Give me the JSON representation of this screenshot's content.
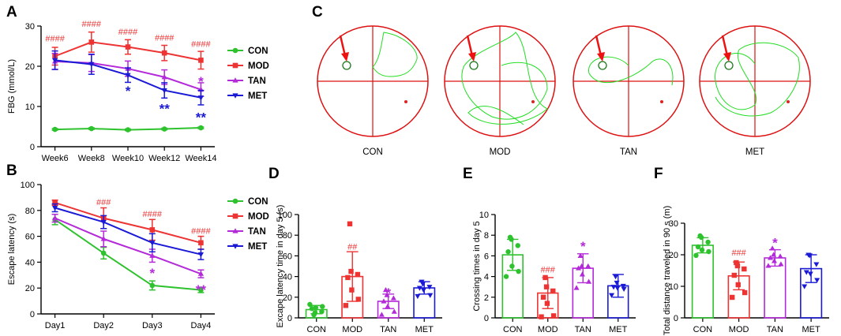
{
  "colors": {
    "CON": "#2ec22e",
    "MOD": "#ee3333",
    "TAN": "#b429d9",
    "MET": "#1a1ad6",
    "sig": "#ee3333",
    "axis": "#000000",
    "track": "#22dd22",
    "grid": "#dd1111",
    "arrow": "#ee1111"
  },
  "chart_data": [
    {
      "id": "A",
      "panel_label": "A",
      "type": "line",
      "ylabel": "FBG (mmol/L)",
      "categories": [
        "Week6",
        "Week8",
        "Week10",
        "Week12",
        "Week14"
      ],
      "ylim": [
        0,
        30
      ],
      "yticks": [
        0,
        10,
        20,
        30
      ],
      "legend": [
        "CON",
        "MOD",
        "TAN",
        "MET"
      ],
      "series": [
        {
          "name": "CON",
          "values": [
            4.3,
            4.5,
            4.2,
            4.4,
            4.7
          ],
          "err": [
            0.2,
            0.2,
            0.2,
            0.2,
            0.2
          ]
        },
        {
          "name": "MOD",
          "values": [
            22.5,
            26,
            24.8,
            23.3,
            21.5
          ],
          "err": [
            2.2,
            2.5,
            1.8,
            1.9,
            2.2
          ]
        },
        {
          "name": "TAN",
          "values": [
            21.2,
            20.8,
            19.4,
            17.3,
            14.2
          ],
          "err": [
            2,
            2.1,
            1.9,
            1.8,
            1.7
          ]
        },
        {
          "name": "MET",
          "values": [
            21.5,
            20.5,
            17.8,
            14,
            12.2
          ],
          "err": [
            2.3,
            2.5,
            1.8,
            1.9,
            1.8
          ]
        }
      ],
      "annotations": [
        {
          "text": "####",
          "cat": 0,
          "y": 26.2,
          "color": "sig"
        },
        {
          "text": "####",
          "cat": 1,
          "y": 29.8,
          "color": "sig"
        },
        {
          "text": "####",
          "cat": 2,
          "y": 27.8,
          "color": "sig"
        },
        {
          "text": "####",
          "cat": 3,
          "y": 26.4,
          "color": "sig"
        },
        {
          "text": "####",
          "cat": 4,
          "y": 24.8,
          "color": "sig"
        },
        {
          "text": "*",
          "cat": 2,
          "y": 14.3,
          "color": "MET"
        },
        {
          "text": "**",
          "cat": 3,
          "y": 9.9,
          "color": "MET"
        },
        {
          "text": "**",
          "cat": 4,
          "y": 7.7,
          "color": "MET"
        },
        {
          "text": "*",
          "cat": 4,
          "y": 16.7,
          "color": "TAN"
        }
      ]
    },
    {
      "id": "B",
      "panel_label": "B",
      "type": "line",
      "ylabel": "Escape latency (s)",
      "categories": [
        "Day1",
        "Day2",
        "Day3",
        "Day4"
      ],
      "ylim": [
        0,
        100
      ],
      "yticks": [
        0,
        20,
        40,
        60,
        80,
        100
      ],
      "legend": [
        "CON",
        "MOD",
        "TAN",
        "MET"
      ],
      "series": [
        {
          "name": "CON",
          "values": [
            73,
            47,
            22,
            18.5
          ],
          "err": [
            4,
            4.5,
            3.5,
            2
          ]
        },
        {
          "name": "MOD",
          "values": [
            86,
            74,
            65,
            55
          ],
          "err": [
            2,
            8,
            8,
            5
          ]
        },
        {
          "name": "TAN",
          "values": [
            74,
            58,
            45,
            31
          ],
          "err": [
            3,
            6,
            5,
            3
          ]
        },
        {
          "name": "MET",
          "values": [
            82,
            71,
            55,
            46
          ],
          "err": [
            3,
            5,
            7,
            4
          ]
        }
      ],
      "annotations": [
        {
          "text": "###",
          "cat": 1,
          "y": 84,
          "color": "sig"
        },
        {
          "text": "####",
          "cat": 2,
          "y": 75,
          "color": "sig"
        },
        {
          "text": "####",
          "cat": 3,
          "y": 62,
          "color": "sig"
        },
        {
          "text": "*",
          "cat": 2,
          "y": 33,
          "color": "TAN"
        },
        {
          "text": "**",
          "cat": 3,
          "y": 20,
          "color": "TAN"
        }
      ]
    },
    {
      "id": "D",
      "panel_label": "D",
      "type": "bar",
      "ylabel": "Excape latency time in day 5 (s)",
      "categories": [
        "CON",
        "MOD",
        "TAN",
        "MET"
      ],
      "ylim": [
        0,
        100
      ],
      "yticks": [
        0,
        20,
        40,
        60,
        80,
        100
      ],
      "values": [
        8,
        40,
        16,
        29
      ],
      "err": [
        4,
        24,
        7,
        6
      ],
      "points": [
        [
          3,
          5,
          6,
          9,
          10,
          11,
          13
        ],
        [
          91,
          45,
          42,
          39,
          27,
          18,
          12
        ],
        [
          27,
          22,
          19,
          16,
          11,
          6,
          3
        ],
        [
          35,
          33,
          30,
          29,
          27,
          22,
          21
        ]
      ],
      "markers": [
        "circle",
        "square",
        "triangle",
        "triangle-down"
      ],
      "annotations": [
        {
          "text": "##",
          "cat": 1,
          "y": 66,
          "color": "sig"
        },
        {
          "text": "*",
          "cat": 2,
          "y": 26,
          "color": "TAN"
        }
      ]
    },
    {
      "id": "E",
      "panel_label": "E",
      "type": "bar",
      "ylabel": "Crossing times in day 5",
      "categories": [
        "CON",
        "MOD",
        "TAN",
        "MET"
      ],
      "ylim": [
        0,
        10
      ],
      "yticks": [
        0,
        2,
        4,
        6,
        8,
        10
      ],
      "values": [
        6.1,
        2.4,
        4.8,
        3.1
      ],
      "err": [
        1.5,
        1.5,
        1.4,
        1.1
      ],
      "points": [
        [
          7.8,
          7.6,
          7,
          6.4,
          5,
          4.5,
          4
        ],
        [
          3.9,
          3,
          2.6,
          2,
          1.4,
          0.2,
          0.1
        ],
        [
          6,
          5,
          5,
          4.8,
          4.2,
          3.5,
          2.9
        ],
        [
          4,
          3.4,
          3.1,
          3,
          2.9,
          2.8,
          2.2
        ]
      ],
      "markers": [
        "circle",
        "square",
        "triangle",
        "triangle-down"
      ],
      "annotations": [
        {
          "text": "###",
          "cat": 1,
          "y": 4.4,
          "color": "sig"
        },
        {
          "text": "*",
          "cat": 2,
          "y": 7.1,
          "color": "TAN"
        }
      ]
    },
    {
      "id": "F",
      "panel_label": "F",
      "type": "bar",
      "ylabel": "Total distance traveled in 90 s (m)",
      "categories": [
        "CON",
        "MOD",
        "TAN",
        "MET"
      ],
      "ylim": [
        0,
        30
      ],
      "yticks": [
        0,
        10,
        20,
        30
      ],
      "values": [
        23,
        13.3,
        19,
        15.6
      ],
      "err": [
        2.4,
        4.4,
        2.6,
        4.4
      ],
      "points": [
        [
          26,
          25.5,
          24,
          22.5,
          21.5,
          21,
          19.8
        ],
        [
          17.5,
          16.5,
          15.5,
          13.5,
          10.5,
          8,
          6.5
        ],
        [
          22,
          20,
          19.5,
          19,
          18,
          17,
          16.5
        ],
        [
          20,
          19.8,
          17,
          14.5,
          14,
          12,
          10
        ]
      ],
      "markers": [
        "circle",
        "square",
        "triangle",
        "triangle-down"
      ],
      "annotations": [
        {
          "text": "###",
          "cat": 1,
          "y": 19.8,
          "color": "sig"
        },
        {
          "text": "*",
          "cat": 2,
          "y": 24.4,
          "color": "TAN"
        }
      ]
    }
  ],
  "panelC": {
    "panel_label": "C",
    "groups": [
      "CON",
      "MOD",
      "TAN",
      "MET"
    ]
  }
}
